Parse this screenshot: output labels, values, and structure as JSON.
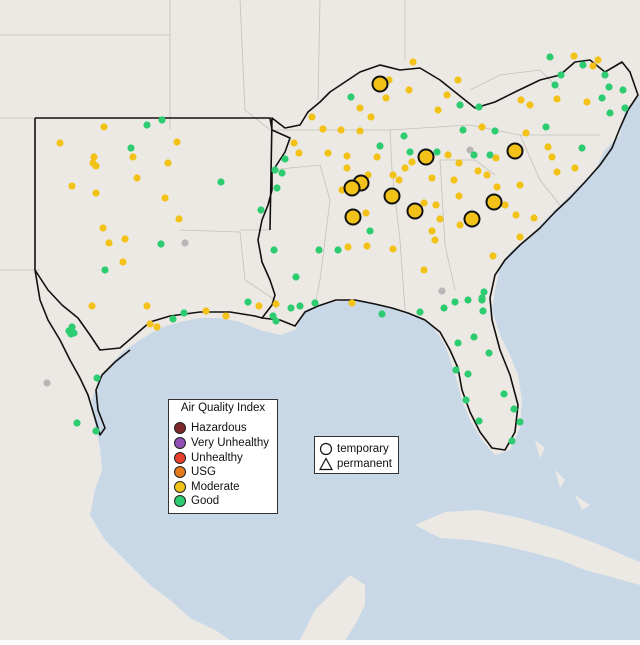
{
  "legend": {
    "title": "Air Quality Index",
    "items": [
      {
        "label": "Hazardous",
        "color": "#7e2a2a"
      },
      {
        "label": "Very Unhealthy",
        "color": "#8f4fb5"
      },
      {
        "label": "Unhealthy",
        "color": "#e8402f"
      },
      {
        "label": "USG",
        "color": "#e57a1c"
      },
      {
        "label": "Moderate",
        "color": "#f2c218"
      },
      {
        "label": "Good",
        "color": "#2ecc71"
      }
    ]
  },
  "shape_legend": {
    "temporary": "temporary",
    "permanent": "permanent"
  },
  "colors": {
    "water": "#c9d8e6",
    "land": "#ece9e4",
    "moderate": "#f2c218",
    "good": "#2ecc71",
    "no_data": "#b7b7b7"
  }
}
